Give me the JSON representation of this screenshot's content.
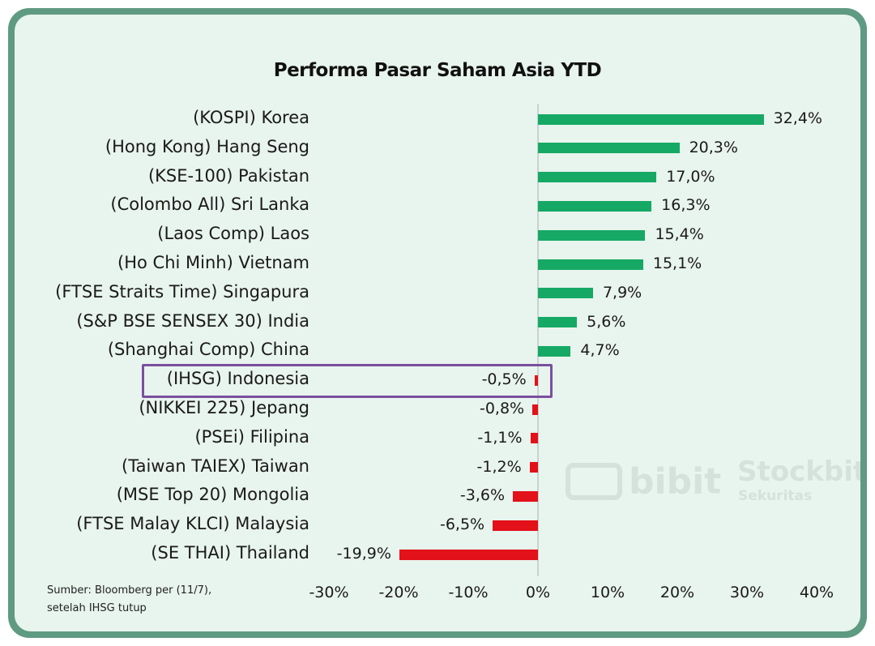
{
  "title": "Performa Pasar Saham Asia YTD",
  "source_lines": [
    "Sumber: Bloomberg per (11/7),",
    "setelah IHSG tutup"
  ],
  "watermark": {
    "bibit": "bibit",
    "stockbit": "Stockbit",
    "sekuritas": "Sekuritas"
  },
  "colors": {
    "positive": "#16a965",
    "negative": "#e3111a",
    "highlight": "#7b4fa0",
    "frame": "#5f9a83",
    "background": "#e8f4ee"
  },
  "chart_data": {
    "type": "bar",
    "orientation": "horizontal",
    "title": "Performa Pasar Saham Asia YTD",
    "categories": [
      "(KOSPI) Korea",
      "(Hong Kong) Hang Seng",
      "(KSE-100) Pakistan",
      "(Colombo All) Sri Lanka",
      "(Laos Comp) Laos",
      "(Ho Chi Minh) Vietnam",
      "(FTSE Straits Time) Singapura",
      "(S&P BSE SENSEX 30) India",
      "(Shanghai Comp) China",
      "(IHSG) Indonesia",
      "(NIKKEI 225) Jepang",
      "(PSEi) Filipina",
      "(Taiwan TAIEX) Taiwan",
      "(MSE Top 20) Mongolia",
      "(FTSE Malay KLCI) Malaysia",
      "(SE THAI) Thailand"
    ],
    "values": [
      32.4,
      20.3,
      17.0,
      16.3,
      15.4,
      15.1,
      7.9,
      5.6,
      4.7,
      -0.5,
      -0.8,
      -1.1,
      -1.2,
      -3.6,
      -6.5,
      -19.9
    ],
    "value_labels": [
      "32,4%",
      "20,3%",
      "17,0%",
      "16,3%",
      "15,4%",
      "15,1%",
      "7,9%",
      "5,6%",
      "4,7%",
      "-0,5%",
      "-0,8%",
      "-1,1%",
      "-1,2%",
      "-3,6%",
      "-6,5%",
      "-19,9%"
    ],
    "highlighted_category": "(IHSG) Indonesia",
    "xlim": [
      -30,
      40
    ],
    "xticks": [
      -30,
      -20,
      -10,
      0,
      10,
      20,
      30,
      40
    ],
    "xtick_labels": [
      "-30%",
      "-20%",
      "-10%",
      "0%",
      "10%",
      "20%",
      "30%",
      "40%"
    ],
    "grid": false,
    "legend": "none"
  }
}
